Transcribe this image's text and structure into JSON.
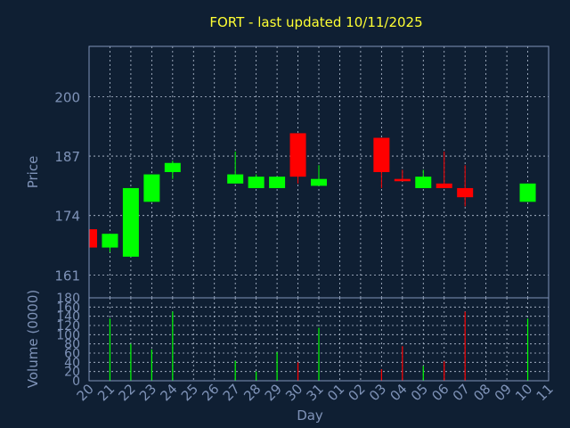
{
  "chart_data": {
    "type": "candlestick",
    "title": "FORT - last updated 10/11/2025",
    "xlabel": "Day",
    "price_ylabel": "Price",
    "volume_ylabel": "Volume (0000)",
    "price_yticks": [
      161,
      174,
      187,
      200
    ],
    "price_ylim": [
      156,
      211
    ],
    "volume_yticks": [
      0,
      20,
      40,
      60,
      80,
      100,
      120,
      140,
      160,
      180
    ],
    "volume_ylim": [
      0,
      180
    ],
    "x_labels": [
      "20",
      "21",
      "22",
      "23",
      "24",
      "25",
      "26",
      "27",
      "28",
      "29",
      "30",
      "31",
      "01",
      "02",
      "03",
      "04",
      "05",
      "06",
      "07",
      "08",
      "09",
      "10",
      "11"
    ],
    "grid": true,
    "up_color": "#00ff00",
    "down_color": "#ff0000",
    "candles": [
      {
        "day": "20",
        "open": 171,
        "high": 171,
        "low": 167,
        "close": 167,
        "volume": 0
      },
      {
        "day": "21",
        "open": 167,
        "high": 170,
        "low": 166,
        "close": 170,
        "volume": 135
      },
      {
        "day": "22",
        "open": 165,
        "high": 180,
        "low": 165,
        "close": 180,
        "volume": 80
      },
      {
        "day": "23",
        "open": 177,
        "high": 183,
        "low": 177,
        "close": 183,
        "volume": 68
      },
      {
        "day": "24",
        "open": 183.5,
        "high": 186,
        "low": 182,
        "close": 185.5,
        "volume": 150
      },
      {
        "day": "27",
        "open": 181,
        "high": 188,
        "low": 181,
        "close": 183,
        "volume": 43
      },
      {
        "day": "28",
        "open": 180,
        "high": 183,
        "low": 180,
        "close": 182.5,
        "volume": 20
      },
      {
        "day": "29",
        "open": 180,
        "high": 182.5,
        "low": 180,
        "close": 182.5,
        "volume": 62
      },
      {
        "day": "30",
        "open": 192,
        "high": 192,
        "low": 181,
        "close": 182.5,
        "volume": 40
      },
      {
        "day": "31",
        "open": 180.5,
        "high": 185,
        "low": 180.5,
        "close": 182,
        "volume": 115
      },
      {
        "day": "03",
        "open": 191,
        "high": 191,
        "low": 180,
        "close": 183.5,
        "volume": 25
      },
      {
        "day": "04",
        "open": 182,
        "high": 184,
        "low": 181.5,
        "close": 181.5,
        "volume": 75
      },
      {
        "day": "05",
        "open": 180,
        "high": 184,
        "low": 180,
        "close": 182.5,
        "volume": 32
      },
      {
        "day": "06",
        "open": 181,
        "high": 188,
        "low": 180,
        "close": 180,
        "volume": 42
      },
      {
        "day": "07",
        "open": 180,
        "high": 185,
        "low": 176,
        "close": 178,
        "volume": 150
      },
      {
        "day": "10",
        "open": 177,
        "high": 181,
        "low": 177,
        "close": 181,
        "volume": 135
      }
    ]
  }
}
